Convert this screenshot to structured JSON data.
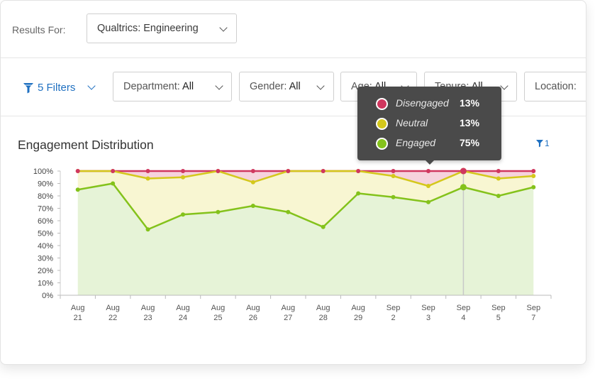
{
  "header": {
    "results_for_label": "Results For:",
    "results_for_value": "Qualtrics: Engineering"
  },
  "filters": {
    "filters_button_label": "5 Filters",
    "dropdowns": [
      {
        "label": "Department:",
        "value": "All"
      },
      {
        "label": "Gender:",
        "value": "All"
      },
      {
        "label": "Age:",
        "value": "All"
      },
      {
        "label": "Tenure:",
        "value": "All"
      },
      {
        "label": "Location:",
        "value": ""
      }
    ]
  },
  "chart_title": "Engagement Distribution",
  "chart_filter_count": "1",
  "colors": {
    "accent": "#1f70c1",
    "disengaged_line": "#d0375f",
    "disengaged_fill": "#f6d3dd",
    "neutral_line": "#d4c81c",
    "neutral_fill": "#f8f6d2",
    "engaged_line": "#84c21b",
    "engaged_fill": "#e6f3d7"
  },
  "tooltip": {
    "rows": [
      {
        "name": "Disengaged",
        "value": "13%",
        "color": "#d0375f"
      },
      {
        "name": "Neutral",
        "value": "13%",
        "color": "#d4c81c"
      },
      {
        "name": "Engaged",
        "value": "75%",
        "color": "#84c21b"
      }
    ],
    "category_index": 11
  },
  "chart_data": {
    "type": "area",
    "title": "Engagement Distribution",
    "categories": [
      [
        "Aug",
        "21"
      ],
      [
        "Aug",
        "22"
      ],
      [
        "Aug",
        "23"
      ],
      [
        "Aug",
        "24"
      ],
      [
        "Aug",
        "25"
      ],
      [
        "Aug",
        "26"
      ],
      [
        "Aug",
        "27"
      ],
      [
        "Aug",
        "28"
      ],
      [
        "Aug",
        "29"
      ],
      [
        "Sep",
        "2"
      ],
      [
        "Sep",
        "3"
      ],
      [
        "Sep",
        "4"
      ],
      [
        "Sep",
        "5"
      ],
      [
        "Sep",
        "7"
      ]
    ],
    "ylim": [
      0,
      100
    ],
    "yticks": [
      "0%",
      "10%",
      "20%",
      "30%",
      "40%",
      "50%",
      "60%",
      "70%",
      "80%",
      "90%",
      "100%"
    ],
    "stacked": true,
    "series": [
      {
        "name": "Engaged",
        "cumulative": [
          85,
          90,
          53,
          65,
          67,
          72,
          67,
          55,
          82,
          79,
          75,
          87,
          80,
          87
        ]
      },
      {
        "name": "Neutral",
        "cumulative": [
          100,
          100,
          94,
          95,
          100,
          91,
          100,
          100,
          100,
          96,
          88,
          100,
          94,
          96
        ]
      },
      {
        "name": "Disengaged",
        "cumulative": [
          100,
          100,
          100,
          100,
          100,
          100,
          100,
          100,
          100,
          100,
          100,
          100,
          100,
          100
        ]
      }
    ]
  }
}
